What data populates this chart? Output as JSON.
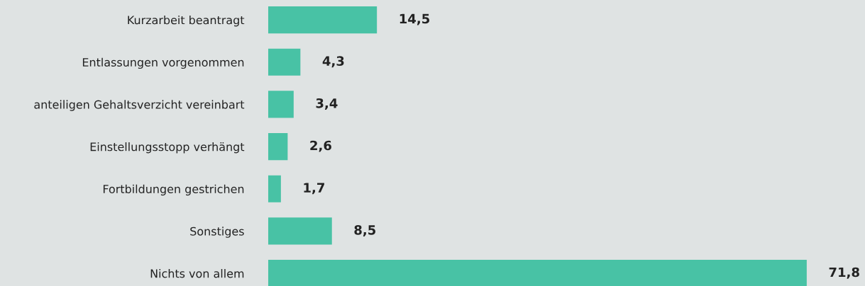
{
  "chart_data": {
    "type": "bar",
    "orientation": "horizontal",
    "categories": [
      "Kurzarbeit beantragt",
      "Entlassungen vorgenommen",
      "anteiligen Gehaltsverzicht vereinbart",
      "Einstellungsstopp verhängt",
      "Fortbildungen gestrichen",
      "Sonstiges",
      "Nichts von allem"
    ],
    "values": [
      14.5,
      4.3,
      3.4,
      2.6,
      1.7,
      8.5,
      71.8
    ],
    "value_labels": [
      "14,5",
      "4,3",
      "3,4",
      "2,6",
      "1,7",
      "8,5",
      "71,8"
    ],
    "color": "#48c2a5",
    "grid": false,
    "legend": false
  }
}
